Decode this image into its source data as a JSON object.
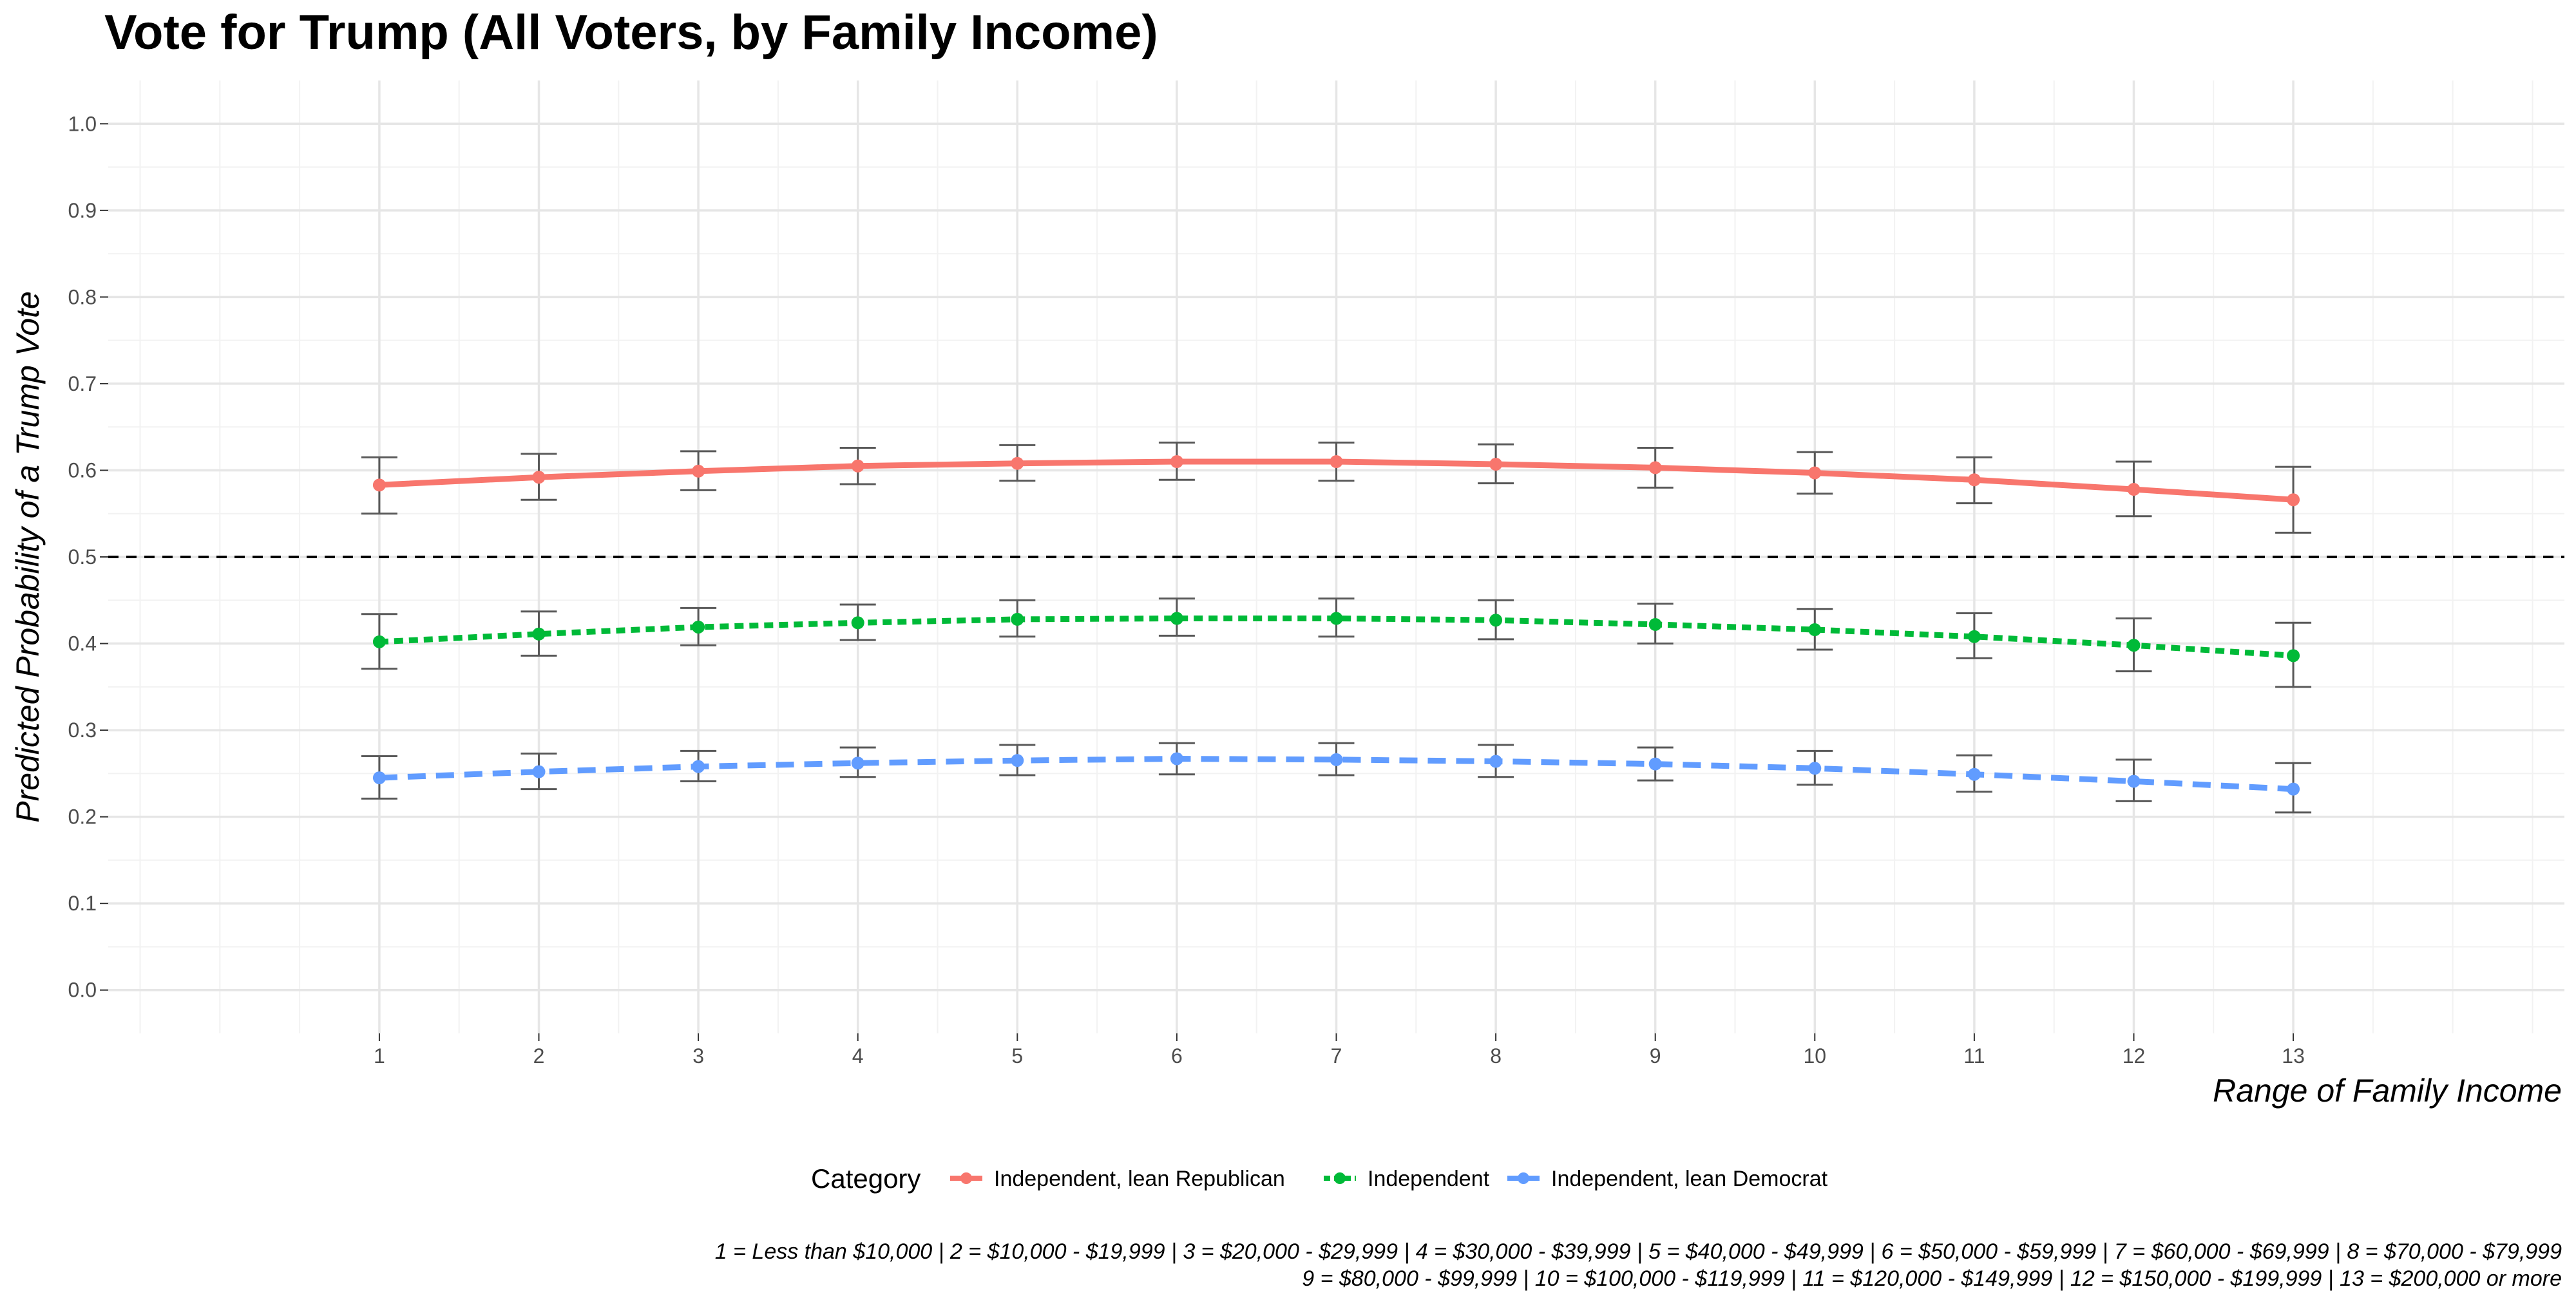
{
  "chart_data": {
    "type": "line",
    "title": "Vote for Trump (All Voters, by Family Income)",
    "xlabel": "Range of Family Income",
    "ylabel": "Predicted Probability of a Trump Vote",
    "x": [
      1,
      2,
      3,
      4,
      5,
      6,
      7,
      8,
      9,
      10,
      11,
      12,
      13
    ],
    "x_tick_labels": [
      "1",
      "2",
      "3",
      "4",
      "5",
      "6",
      "7",
      "8",
      "9",
      "10",
      "11",
      "12",
      "13"
    ],
    "xlim": [
      -0.7,
      14.7
    ],
    "ylim": [
      -0.05,
      1.05
    ],
    "y_ticks": [
      0.0,
      0.1,
      0.2,
      0.3,
      0.4,
      0.5,
      0.6,
      0.7,
      0.8,
      0.9,
      1.0
    ],
    "y_tick_labels": [
      "0.0",
      "0.1",
      "0.2",
      "0.3",
      "0.4",
      "0.5",
      "0.6",
      "0.7",
      "0.8",
      "0.9",
      "1.0"
    ],
    "reference_line": {
      "y": 0.5,
      "style": "dashed",
      "color": "#000000"
    },
    "grid": true,
    "legend_title": "Category",
    "legend_position": "bottom",
    "series": [
      {
        "name": "Independent, lean Republican",
        "color": "#F8766D",
        "linetype": "solid",
        "values": [
          0.583,
          0.592,
          0.599,
          0.605,
          0.608,
          0.61,
          0.61,
          0.607,
          0.603,
          0.597,
          0.589,
          0.578,
          0.566
        ],
        "lower": [
          0.55,
          0.566,
          0.577,
          0.584,
          0.588,
          0.589,
          0.588,
          0.585,
          0.58,
          0.573,
          0.562,
          0.547,
          0.528
        ],
        "upper": [
          0.615,
          0.619,
          0.622,
          0.626,
          0.629,
          0.632,
          0.632,
          0.63,
          0.626,
          0.621,
          0.615,
          0.61,
          0.604
        ]
      },
      {
        "name": "Independent",
        "color": "#00BA38",
        "linetype": "dotted",
        "values": [
          0.402,
          0.411,
          0.419,
          0.424,
          0.428,
          0.429,
          0.429,
          0.427,
          0.422,
          0.416,
          0.408,
          0.398,
          0.386
        ],
        "lower": [
          0.371,
          0.386,
          0.398,
          0.404,
          0.408,
          0.409,
          0.408,
          0.405,
          0.4,
          0.393,
          0.383,
          0.368,
          0.35
        ],
        "upper": [
          0.434,
          0.437,
          0.441,
          0.445,
          0.45,
          0.452,
          0.452,
          0.45,
          0.446,
          0.44,
          0.435,
          0.429,
          0.424
        ]
      },
      {
        "name": "Independent, lean Democrat",
        "color": "#619CFF",
        "linetype": "dashed",
        "values": [
          0.245,
          0.252,
          0.258,
          0.262,
          0.265,
          0.267,
          0.266,
          0.264,
          0.261,
          0.256,
          0.249,
          0.241,
          0.232
        ],
        "lower": [
          0.221,
          0.232,
          0.241,
          0.246,
          0.248,
          0.249,
          0.248,
          0.246,
          0.242,
          0.237,
          0.229,
          0.218,
          0.205
        ],
        "upper": [
          0.27,
          0.273,
          0.276,
          0.28,
          0.283,
          0.285,
          0.285,
          0.283,
          0.28,
          0.276,
          0.271,
          0.266,
          0.262
        ]
      }
    ]
  },
  "caption_lines": [
    "1 = Less than $10,000 | 2 = $10,000 - $19,999 | 3 = $20,000 - $29,999 | 4 = $30,000 - $39,999 | 5 = $40,000 - $49,999 | 6 = $50,000 - $59,999 | 7 = $60,000 - $69,999 | 8 = $70,000 - $79,999",
    "9 = $80,000 - $99,999 | 10 = $100,000 - $119,999 | 11 = $120,000 - $149,999 | 12 = $150,000 - $199,999 | 13 = $200,000 or more"
  ]
}
